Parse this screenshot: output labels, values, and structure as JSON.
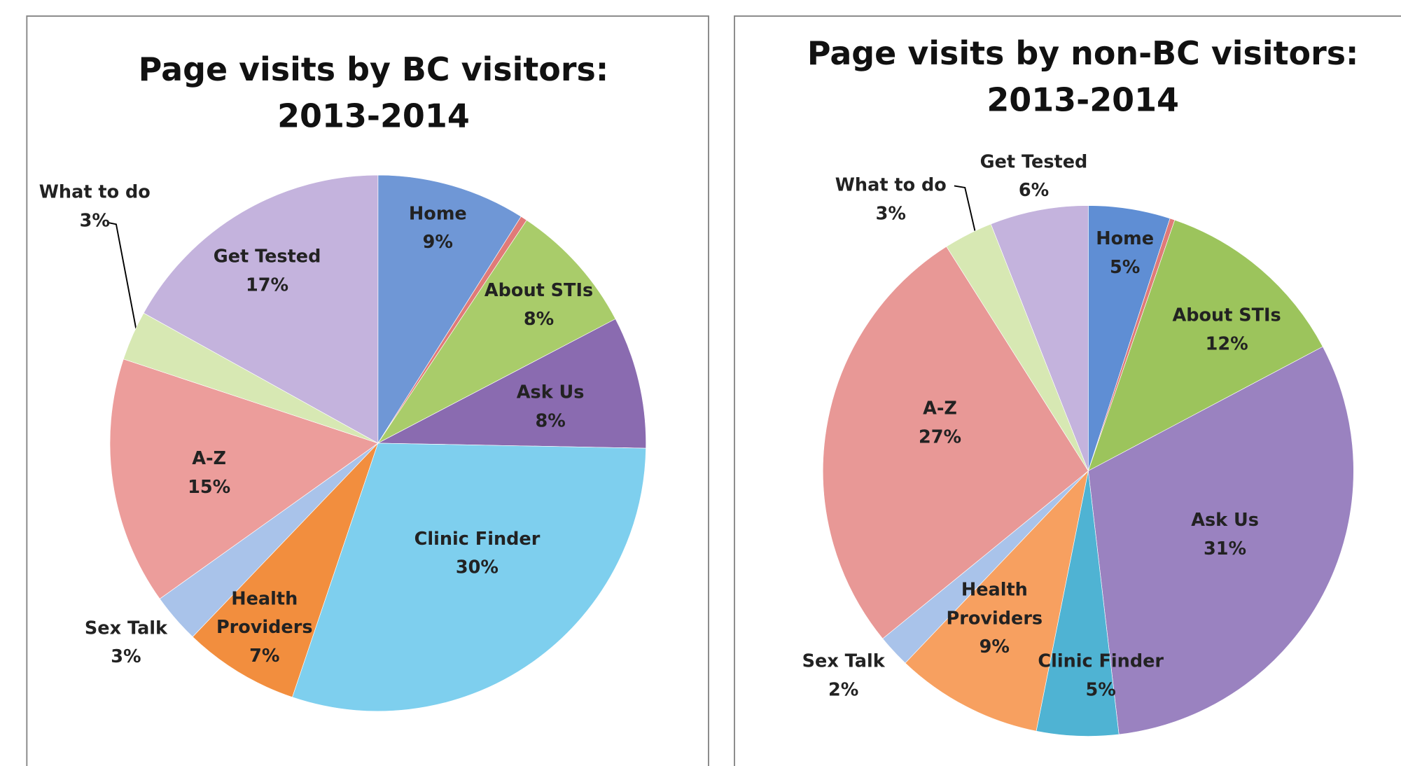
{
  "chart_data": [
    {
      "type": "pie",
      "title": "Page visits by BC visitors: 2013-2014",
      "categories": [
        "Home",
        null,
        "About STIs",
        "Ask Us",
        "Clinic Finder",
        "Health Providers",
        "Sex Talk",
        "A-Z",
        "What to do",
        "Get Tested"
      ],
      "values": [
        9,
        0.4,
        8,
        8,
        30,
        7,
        3,
        15,
        3,
        17
      ],
      "value_labels": [
        "9%",
        null,
        "8%",
        "8%",
        "30%",
        "7%",
        "3%",
        "15%",
        "3%",
        "17%"
      ],
      "colors": [
        "#6f97d6",
        "#e07a78",
        "#a9cc6a",
        "#8a6bb0",
        "#7ecfee",
        "#f28e3e",
        "#a9c3ea",
        "#ec9d9b",
        "#d7e8b3",
        "#c4b3dd"
      ]
    },
    {
      "type": "pie",
      "title": "Page visits by non-BC visitors: 2013-2014",
      "categories": [
        "Home",
        null,
        "About STIs",
        "Ask Us",
        "Clinic Finder",
        "Health Providers",
        "Sex Talk",
        "A-Z",
        "What to do",
        "Get Tested"
      ],
      "values": [
        5,
        0.3,
        12,
        31,
        5,
        9,
        2,
        27,
        3,
        6
      ],
      "value_labels": [
        "5%",
        null,
        "12%",
        "31%",
        "5%",
        "9%",
        "2%",
        "27%",
        "3%",
        "6%"
      ],
      "colors": [
        "#5f8ed4",
        "#e07a78",
        "#9cc45c",
        "#9a82c0",
        "#4fb3d3",
        "#f7a060",
        "#a9c3ea",
        "#e89896",
        "#d7e8b3",
        "#c4b3dd"
      ]
    }
  ]
}
